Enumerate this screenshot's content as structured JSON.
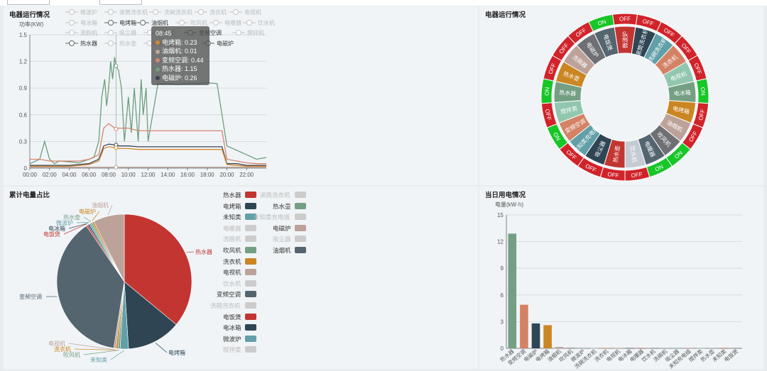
{
  "panels": {
    "p1": {
      "title": "电器运行情况"
    },
    "p2": {
      "title": "电器运行情况"
    },
    "p3": {
      "title": "累计电量占比"
    },
    "p4": {
      "title": "当日用电情况"
    }
  },
  "line_legend": [
    {
      "name": "微波炉",
      "on": false
    },
    {
      "name": "滚筒洗衣机",
      "on": false
    },
    {
      "name": "洗碗洗衣机",
      "on": false
    },
    {
      "name": "洗衣机",
      "on": false
    },
    {
      "name": "电视机",
      "on": false
    },
    {
      "name": "电冰箱",
      "on": false
    },
    {
      "name": "电烤箱",
      "on": true
    },
    {
      "name": "油烟机",
      "on": true
    },
    {
      "name": "吹风机",
      "on": false
    },
    {
      "name": "电暖器",
      "on": false
    },
    {
      "name": "饮水机",
      "on": false
    },
    {
      "name": "洗脸机",
      "on": false
    },
    {
      "name": "吸尘器",
      "on": false
    },
    {
      "name": "电饭煲",
      "on": false
    },
    {
      "name": "变频空调",
      "on": true
    },
    {
      "name": "搅拌机",
      "on": false
    },
    {
      "name": "热水器",
      "on": true
    },
    {
      "name": "热水壶",
      "on": false
    },
    {
      "name": "未知类",
      "on": false
    },
    {
      "name": "电磁炉",
      "on": true
    }
  ],
  "tooltip": {
    "time": "08:45",
    "rows": [
      {
        "label": "电烤箱: 0.23",
        "color": "#d48a30"
      },
      {
        "label": "油烟机: 0.01",
        "color": "#c0a69a"
      },
      {
        "label": "变频空调: 0.44",
        "color": "#d98570"
      },
      {
        "label": "热水器: 1.15",
        "color": "#6d9e7e"
      },
      {
        "label": "电磁炉: 0.26",
        "color": "#3c4652"
      }
    ]
  },
  "ring_labels": [
    {
      "name": "微波炉",
      "color": "#c23531",
      "state": "OFF"
    },
    {
      "name": "滚筒洗衣机",
      "color": "#2f4554",
      "state": "OFF"
    },
    {
      "name": "洗碗洗衣机",
      "color": "#61a0a8",
      "state": "OFF"
    },
    {
      "name": "洗衣机",
      "color": "#d48265",
      "state": "OFF"
    },
    {
      "name": "电视机",
      "color": "#91c7ae",
      "state": "OFF"
    },
    {
      "name": "电冰箱",
      "color": "#749f83",
      "state": "ON"
    },
    {
      "name": "电烤箱",
      "color": "#ca8622",
      "state": "OFF"
    },
    {
      "name": "油烟机",
      "color": "#bda29a",
      "state": "OFF"
    },
    {
      "name": "吹风机",
      "color": "#6e7074",
      "state": "ON"
    },
    {
      "name": "电暖器",
      "color": "#546570",
      "state": "ON"
    },
    {
      "name": "饮水机",
      "color": "#c4ccd3",
      "state": "OFF"
    },
    {
      "name": "热水壶",
      "color": "#c23531",
      "state": "OFF"
    },
    {
      "name": "吸尘器",
      "color": "#2f4554",
      "state": "OFF"
    },
    {
      "name": "未知类充电插",
      "color": "#61a0a8",
      "state": "OFF"
    },
    {
      "name": "变频空调",
      "color": "#d48265",
      "state": "ON"
    },
    {
      "name": "搅拌类",
      "color": "#91c7ae",
      "state": "OFF"
    },
    {
      "name": "热水器",
      "color": "#749f83",
      "state": "ON"
    },
    {
      "name": "热水壶",
      "color": "#ca8622",
      "state": "OFF"
    },
    {
      "name": "洗碗器",
      "color": "#bda29a",
      "state": "OFF"
    },
    {
      "name": "电磁炉",
      "color": "#6e7074",
      "state": "OFF"
    },
    {
      "name": "电饭煲",
      "color": "#546570",
      "state": "ON"
    }
  ],
  "pie_legend": [
    {
      "name": "热水器",
      "on": true,
      "color": "#c23531"
    },
    {
      "name": "滚筒洗衣机",
      "on": false,
      "color": "#ccc"
    },
    {
      "name": "电烤箱",
      "on": true,
      "color": "#2f4554"
    },
    {
      "name": "热水壶",
      "on": true,
      "color": "#749f83"
    },
    {
      "name": "未知类",
      "on": true,
      "color": "#61a0a8"
    },
    {
      "name": "未知类充电插",
      "on": false,
      "color": "#ccc"
    },
    {
      "name": "电暖器",
      "on": false,
      "color": "#ccc"
    },
    {
      "name": "电磁炉",
      "on": true,
      "color": "#bda29a"
    },
    {
      "name": "洗碗机",
      "on": false,
      "color": "#ccc"
    },
    {
      "name": "吸尘器",
      "on": false,
      "color": "#ccc"
    },
    {
      "name": "吹风机",
      "on": true,
      "color": "#749f83"
    },
    {
      "name": "油烟机",
      "on": true,
      "color": "#546570"
    },
    {
      "name": "洗衣机",
      "on": true,
      "color": "#ca8622"
    },
    {
      "name": "电视机",
      "on": true,
      "color": "#bda29a"
    },
    {
      "name": "饮水机",
      "on": false,
      "color": "#ccc"
    },
    {
      "name": "变频空调",
      "on": true,
      "color": "#546570"
    },
    {
      "name": "洗碗洗衣机",
      "on": false,
      "color": "#ccc"
    },
    {
      "name": "电饭煲",
      "on": true,
      "color": "#c23531"
    },
    {
      "name": "电冰箱",
      "on": true,
      "color": "#2f4554"
    },
    {
      "name": "微波炉",
      "on": true,
      "color": "#61a0a8"
    },
    {
      "name": "搅拌类",
      "on": false,
      "color": "#ccc"
    }
  ],
  "chart_data": [
    {
      "type": "line",
      "title": "电器运行情况",
      "ylabel": "功率(KW)",
      "ylim": [
        0,
        1.5
      ],
      "yticks": [
        "0",
        "0.3",
        "0.6",
        "0.9",
        "1.2",
        "1.5"
      ],
      "xticks": [
        "00:00",
        "02:00",
        "04:00",
        "06:00",
        "08:00",
        "10:00",
        "12:00",
        "14:00",
        "16:00",
        "18:00",
        "20:00",
        "22:00"
      ],
      "xlim": [
        0,
        24
      ],
      "grid": true,
      "series": [
        {
          "name": "热水器",
          "color": "#6d9e7e",
          "points": [
            [
              0,
              0.05
            ],
            [
              1,
              0.1
            ],
            [
              1.5,
              0.3
            ],
            [
              2,
              0.1
            ],
            [
              2.5,
              0.05
            ],
            [
              3,
              0.08
            ],
            [
              4,
              0.07
            ],
            [
              5,
              0.06
            ],
            [
              6,
              0.1
            ],
            [
              6.5,
              0.12
            ],
            [
              7,
              0.3
            ],
            [
              7.3,
              0.8
            ],
            [
              7.6,
              1.0
            ],
            [
              7.8,
              0.7
            ],
            [
              8,
              0.9
            ],
            [
              8.2,
              1.2
            ],
            [
              8.4,
              1.0
            ],
            [
              8.6,
              1.25
            ],
            [
              8.75,
              1.15
            ],
            [
              9,
              1.1
            ],
            [
              9.3,
              0.9
            ],
            [
              9.6,
              0.3
            ],
            [
              10,
              0.8
            ],
            [
              10.3,
              0.4
            ],
            [
              10.6,
              0.9
            ],
            [
              11,
              0.3
            ],
            [
              11.3,
              1.0
            ],
            [
              11.5,
              0.6
            ],
            [
              11.8,
              0.9
            ],
            [
              12,
              0.3
            ],
            [
              13,
              0.95
            ],
            [
              14,
              0.95
            ],
            [
              15,
              0.94
            ],
            [
              16,
              0.95
            ],
            [
              17,
              0.95
            ],
            [
              18,
              0.96
            ],
            [
              19,
              0.95
            ],
            [
              19.5,
              0.6
            ],
            [
              20,
              0.25
            ],
            [
              21,
              0.2
            ],
            [
              22,
              0.15
            ],
            [
              23,
              0.1
            ],
            [
              24,
              0.12
            ]
          ]
        },
        {
          "name": "变频空调",
          "color": "#d98570",
          "points": [
            [
              0,
              0.1
            ],
            [
              1,
              0.1
            ],
            [
              2,
              0.08
            ],
            [
              3,
              0.08
            ],
            [
              4,
              0.08
            ],
            [
              5,
              0.08
            ],
            [
              6,
              0.1
            ],
            [
              7,
              0.15
            ],
            [
              7.5,
              0.45
            ],
            [
              8,
              0.5
            ],
            [
              8.75,
              0.44
            ],
            [
              9,
              0.45
            ],
            [
              10,
              0.45
            ],
            [
              11,
              0.42
            ],
            [
              12,
              0.42
            ],
            [
              13,
              0.42
            ],
            [
              14,
              0.42
            ],
            [
              15,
              0.42
            ],
            [
              16,
              0.42
            ],
            [
              17,
              0.42
            ],
            [
              18,
              0.42
            ],
            [
              19,
              0.42
            ],
            [
              19.5,
              0.42
            ],
            [
              20,
              0.1
            ],
            [
              21,
              0.08
            ],
            [
              22,
              0.06
            ],
            [
              23,
              0.05
            ],
            [
              24,
              0.05
            ]
          ]
        },
        {
          "name": "电磁炉",
          "color": "#3c4652",
          "points": [
            [
              0,
              0.03
            ],
            [
              2,
              0.03
            ],
            [
              4,
              0.03
            ],
            [
              6,
              0.05
            ],
            [
              7,
              0.1
            ],
            [
              7.5,
              0.25
            ],
            [
              8,
              0.27
            ],
            [
              8.75,
              0.26
            ],
            [
              9,
              0.25
            ],
            [
              10,
              0.25
            ],
            [
              11,
              0.24
            ],
            [
              12,
              0.24
            ],
            [
              13,
              0.24
            ],
            [
              14,
              0.24
            ],
            [
              15,
              0.24
            ],
            [
              16,
              0.24
            ],
            [
              17,
              0.24
            ],
            [
              18,
              0.24
            ],
            [
              19,
              0.24
            ],
            [
              19.5,
              0.24
            ],
            [
              20,
              0.05
            ],
            [
              21,
              0.05
            ],
            [
              22,
              0.03
            ],
            [
              23,
              0.03
            ],
            [
              24,
              0.03
            ]
          ]
        },
        {
          "name": "电烤箱",
          "color": "#d48a30",
          "points": [
            [
              0,
              0.02
            ],
            [
              2,
              0.02
            ],
            [
              4,
              0.02
            ],
            [
              6,
              0.04
            ],
            [
              7,
              0.08
            ],
            [
              7.5,
              0.22
            ],
            [
              8,
              0.24
            ],
            [
              8.75,
              0.23
            ],
            [
              9,
              0.22
            ],
            [
              10,
              0.22
            ],
            [
              11,
              0.21
            ],
            [
              12,
              0.21
            ],
            [
              13,
              0.21
            ],
            [
              14,
              0.21
            ],
            [
              15,
              0.21
            ],
            [
              16,
              0.21
            ],
            [
              17,
              0.21
            ],
            [
              18,
              0.21
            ],
            [
              19,
              0.21
            ],
            [
              19.5,
              0.21
            ],
            [
              20,
              0.04
            ],
            [
              21,
              0.03
            ],
            [
              22,
              0.02
            ],
            [
              23,
              0.02
            ],
            [
              24,
              0.02
            ]
          ]
        },
        {
          "name": "油烟机",
          "color": "#c0a69a",
          "points": [
            [
              0,
              0.01
            ],
            [
              4,
              0.01
            ],
            [
              8,
              0.01
            ],
            [
              8.75,
              0.01
            ],
            [
              12,
              0.01
            ],
            [
              16,
              0.01
            ],
            [
              20,
              0.01
            ],
            [
              24,
              0.01
            ]
          ]
        }
      ]
    },
    {
      "type": "pie",
      "title": "累计电量占比",
      "slices": [
        {
          "name": "热水器",
          "value": 36,
          "color": "#c23531"
        },
        {
          "name": "电烤箱",
          "value": 13,
          "color": "#2f4554"
        },
        {
          "name": "未知类",
          "value": 2,
          "color": "#61a0a8"
        },
        {
          "name": "吹风机",
          "value": 0.5,
          "color": "#749f83"
        },
        {
          "name": "洗衣机",
          "value": 0.5,
          "color": "#ca8622"
        },
        {
          "name": "电视机",
          "value": 0.5,
          "color": "#bda29a"
        },
        {
          "name": "变频空调",
          "value": 38,
          "color": "#546570"
        },
        {
          "name": "电饭煲",
          "value": 0.4,
          "color": "#c23531"
        },
        {
          "name": "电冰箱",
          "value": 0.4,
          "color": "#2f4554"
        },
        {
          "name": "微波炉",
          "value": 0.4,
          "color": "#61a0a8"
        },
        {
          "name": "热水壶",
          "value": 0.4,
          "color": "#749f83"
        },
        {
          "name": "电磁炉",
          "value": 0.4,
          "color": "#ca8622"
        },
        {
          "name": "油烟机",
          "value": 7.5,
          "color": "#bda29a"
        }
      ]
    },
    {
      "type": "bar",
      "title": "当日用电情况",
      "ylabel": "电量(kW·h)",
      "ylim": [
        0,
        15
      ],
      "yticks": [
        "0",
        "3",
        "6",
        "9",
        "12",
        "15"
      ],
      "categories": [
        "热水器",
        "变频空调",
        "电磁炉",
        "电烤箱",
        "油烟机",
        "吹风机",
        "微波炉",
        "洗碗洗衣机",
        "洗衣机",
        "电视机",
        "电冰箱",
        "电暖器",
        "饮水机",
        "洗碗机",
        "吸尘器",
        "未知充电插",
        "搅拌类",
        "热水壶",
        "未知类",
        "电饭煲"
      ],
      "values": [
        12.9,
        4.9,
        2.8,
        2.6,
        0.15,
        0.05,
        0.02,
        0.02,
        0.02,
        0.02,
        0.02,
        0.02,
        0.02,
        0.02,
        0.02,
        0.02,
        0.02,
        0.02,
        0.02,
        0.02
      ],
      "colors": [
        "#749f83",
        "#d48265",
        "#2f4554",
        "#ca8622",
        "#bda29a",
        "#6e7074",
        "#61a0a8",
        "#c4ccd3",
        "#ca8622",
        "#bda29a",
        "#2f4554",
        "#c23531",
        "#546570",
        "#749f83",
        "#61a0a8",
        "#d48265",
        "#91c7ae",
        "#749f83",
        "#c23531",
        "#546570"
      ]
    }
  ]
}
